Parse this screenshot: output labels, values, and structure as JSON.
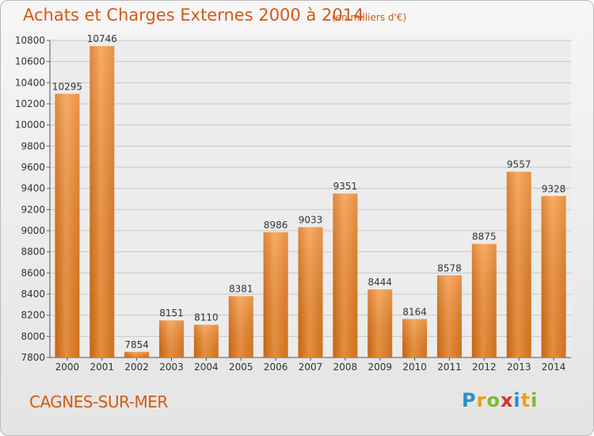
{
  "chart_data": {
    "type": "bar",
    "title": "Achats et Charges Externes 2000 à 2014",
    "subtitle": "(en milliers d'€)",
    "categories": [
      "2000",
      "2001",
      "2002",
      "2003",
      "2004",
      "2005",
      "2006",
      "2007",
      "2008",
      "2009",
      "2010",
      "2011",
      "2012",
      "2013",
      "2014"
    ],
    "values": [
      10295,
      10746,
      7854,
      8151,
      8110,
      8381,
      8986,
      9033,
      9351,
      8444,
      8164,
      8578,
      8875,
      9557,
      9328
    ],
    "ylim": [
      7800,
      10800
    ],
    "yticks": [
      7800,
      8000,
      8200,
      8400,
      8600,
      8800,
      9000,
      9200,
      9400,
      9600,
      9800,
      10000,
      10200,
      10400,
      10600,
      10800
    ],
    "grid": true,
    "bar_color": "#f08a2a"
  },
  "footer": {
    "city": "CAGNES-SUR-MER",
    "logo": "Proxiti"
  }
}
